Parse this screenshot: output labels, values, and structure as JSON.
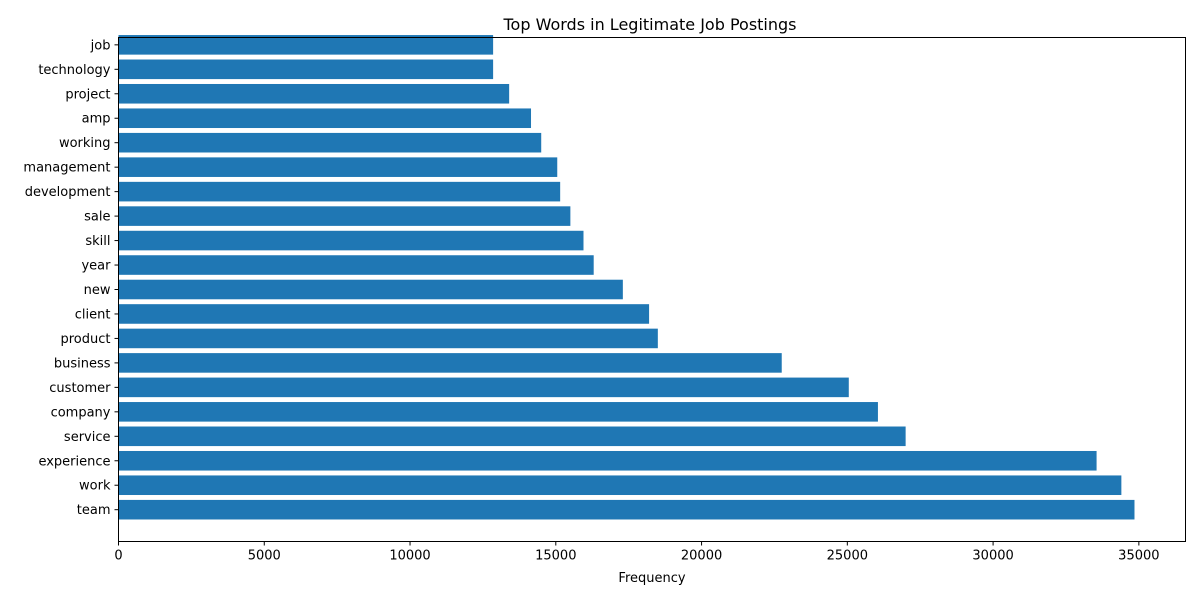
{
  "chart_data": {
    "type": "bar",
    "orientation": "horizontal",
    "title": "Top Words in Legitimate Job Postings",
    "xlabel": "Frequency",
    "ylabel": "",
    "categories": [
      "team",
      "work",
      "experience",
      "service",
      "company",
      "customer",
      "business",
      "product",
      "client",
      "new",
      "year",
      "skill",
      "sale",
      "development",
      "management",
      "working",
      "amp",
      "project",
      "technology",
      "job"
    ],
    "values": [
      34850,
      34400,
      33550,
      27000,
      26050,
      25050,
      22750,
      18500,
      18200,
      17300,
      16300,
      15950,
      15500,
      15150,
      15050,
      14500,
      14150,
      13400,
      12850,
      12850
    ],
    "xlim": [
      0,
      36600
    ],
    "xticks": [
      0,
      5000,
      10000,
      15000,
      20000,
      25000,
      30000,
      35000
    ],
    "bar_color": "#1f77b4",
    "grid": false,
    "legend": "none"
  }
}
